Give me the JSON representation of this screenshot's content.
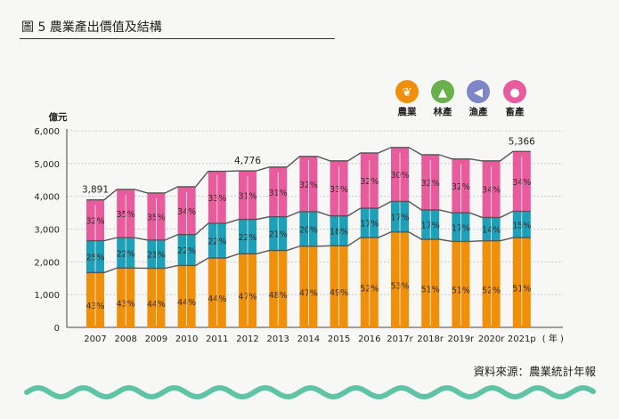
{
  "title": "圖 5  農業產出價值及結構",
  "source": "資料來源：農業統計年報",
  "chart_data": {
    "type": "bar",
    "stacked": true,
    "ylabel": "億元",
    "xlabel_unit": "( 年 )",
    "ylim": [
      0,
      6000
    ],
    "yticks": [
      "0",
      "1,000",
      "2,000",
      "3,000",
      "4,000",
      "5,000",
      "6,000"
    ],
    "grid": true,
    "legend_position": "top-right",
    "categories": [
      "2007",
      "2008",
      "2009",
      "2010",
      "2011",
      "2012",
      "2013",
      "2014",
      "2015",
      "2016",
      "2017r",
      "2018r",
      "2019r",
      "2020r",
      "2021p"
    ],
    "totals": [
      3891,
      4210,
      4100,
      4290,
      4810,
      4776,
      4890,
      5270,
      5080,
      5270,
      5490,
      5270,
      5140,
      5080,
      5366
    ],
    "total_labels": {
      "0": "3,891",
      "5": "4,776",
      "14": "5,366"
    },
    "series": [
      {
        "name": "農業",
        "color": "#f0900a",
        "icon": "wheat-icon",
        "icon_color": "#f0900a",
        "percent": [
          43,
          43,
          44,
          44,
          44,
          47,
          48,
          47,
          49,
          52,
          53,
          51,
          51,
          52,
          51
        ]
      },
      {
        "name": "林產",
        "color": "#6ab04c",
        "icon": "tree-icon",
        "icon_color": "#6ab04c",
        "percent": [
          0,
          0,
          0,
          0,
          0,
          0,
          0,
          0,
          0,
          0,
          0,
          0,
          0,
          0,
          0
        ]
      },
      {
        "name": "漁產",
        "color": "#1ea0b8",
        "icon": "fish-icon",
        "icon_color": "#7f86c8",
        "percent": [
          25,
          22,
          21,
          22,
          22,
          22,
          21,
          20,
          18,
          17,
          17,
          17,
          17,
          14,
          15
        ]
      },
      {
        "name": "畜產",
        "color": "#e85c9d",
        "icon": "pig-icon",
        "icon_color": "#e85c9d",
        "percent": [
          32,
          35,
          35,
          34,
          33,
          31,
          31,
          32,
          33,
          32,
          30,
          32,
          32,
          34,
          34
        ]
      }
    ]
  }
}
